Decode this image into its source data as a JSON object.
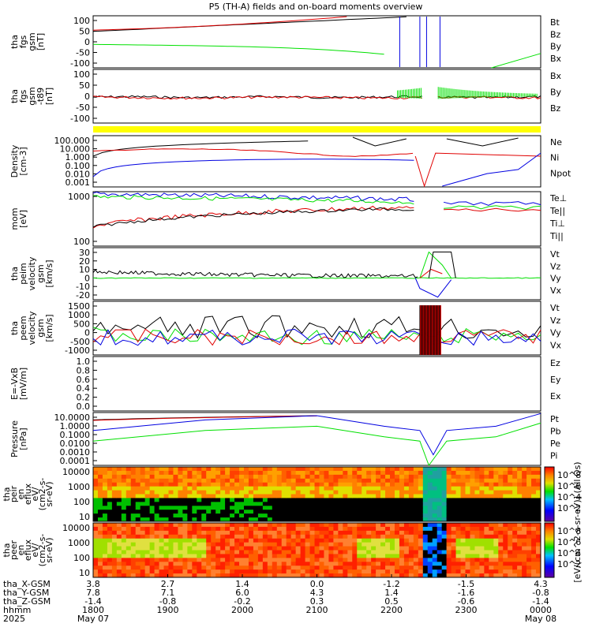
{
  "title": "P5 (TH-A) fields and on-board moments overview",
  "colors": {
    "black": "#000000",
    "red": "#e00000",
    "green": "#00e000",
    "blue": "#0000e0",
    "yellow": "#ffff00"
  },
  "panels": [
    {
      "ylabel": [
        "tha",
        "fgs",
        "gsm",
        "[nT]"
      ],
      "ticks": [
        "100",
        "50",
        "0",
        "-50",
        "-100"
      ],
      "legend": [
        {
          "t": "Bt",
          "c": "black"
        },
        {
          "t": "Bz",
          "c": "red"
        },
        {
          "t": "By",
          "c": "green"
        },
        {
          "t": "Bx",
          "c": "blue"
        }
      ]
    },
    {
      "ylabel": [
        "tha",
        "fgs",
        "gsm",
        "-t89",
        "[nT]"
      ],
      "ticks": [
        "100",
        "50",
        "0",
        "-50",
        "-100"
      ],
      "legend": [
        {
          "t": "Bx",
          "c": "green"
        },
        {
          "t": "By",
          "c": "black"
        },
        {
          "t": "Bz",
          "c": "red"
        }
      ]
    },
    {
      "ylabel": [
        "Density",
        "[cm-3]"
      ],
      "ticks": [
        "100.000",
        "10.000",
        "1.000",
        "0.100",
        "0.010",
        "0.001"
      ],
      "legend": [
        {
          "t": "Ne",
          "c": "red"
        },
        {
          "t": "Ni",
          "c": "black"
        },
        {
          "t": "Npot",
          "c": "blue"
        }
      ]
    },
    {
      "ylabel": [
        "mom",
        "[eV]"
      ],
      "ticks": [
        "1000",
        "100"
      ],
      "legend": [
        {
          "t": "Te⊥",
          "c": "red"
        },
        {
          "t": "Te||",
          "c": "black"
        },
        {
          "t": "Ti⊥",
          "c": "green"
        },
        {
          "t": "Ti||",
          "c": "green"
        }
      ]
    },
    {
      "ylabel": [
        "tha",
        "peim",
        "velocity",
        "gsm",
        "[km/s]"
      ],
      "ticks": [
        "30",
        "20",
        "10",
        "0",
        "-10",
        "-20"
      ],
      "legend": [
        {
          "t": "Vt",
          "c": "black"
        },
        {
          "t": "Vz",
          "c": "red"
        },
        {
          "t": "Vy",
          "c": "green"
        },
        {
          "t": "Vx",
          "c": "blue"
        }
      ]
    },
    {
      "ylabel": [
        "tha",
        "peem",
        "velocity",
        "gsm",
        "[km/s]"
      ],
      "ticks": [
        "1500",
        "1000",
        "500",
        "0",
        "-500",
        "-1000"
      ],
      "legend": [
        {
          "t": "Vt",
          "c": "black"
        },
        {
          "t": "Vz",
          "c": "red"
        },
        {
          "t": "Vy",
          "c": "green"
        },
        {
          "t": "Vx",
          "c": "blue"
        }
      ]
    },
    {
      "ylabel": [
        "E=-VxB",
        "[mV/m]"
      ],
      "ticks": [
        "1.0",
        "0.8",
        "0.6",
        "0.4",
        "0.2",
        "0.0"
      ],
      "legend": [
        {
          "t": "Ez",
          "c": "red"
        },
        {
          "t": "Ey",
          "c": "green"
        },
        {
          "t": "Ex",
          "c": "blue"
        }
      ]
    },
    {
      "ylabel": [
        "Pressure",
        "[nPa]"
      ],
      "ticks": [
        "10.0000",
        "1.0000",
        "0.1000",
        "0.0100",
        "0.0010",
        "0.0001"
      ],
      "legend": [
        {
          "t": "Pt",
          "c": "black"
        },
        {
          "t": "Pb",
          "c": "red"
        },
        {
          "t": "Pe",
          "c": "green"
        },
        {
          "t": "Pi",
          "c": "blue"
        }
      ]
    },
    {
      "ylabel": [
        "tha",
        "peir",
        "en",
        "eflux",
        "eV/",
        "(cm2-s-",
        "sr-eV)"
      ],
      "ticks": [
        "10000",
        "1000",
        "100",
        "10"
      ],
      "legend": []
    },
    {
      "ylabel": [
        "tha",
        "peer",
        "en",
        "eflux",
        "eV/",
        "(cm2-s-",
        "sr-eV)"
      ],
      "ticks": [
        "10000",
        "1000",
        "100",
        "10"
      ],
      "legend": []
    }
  ],
  "colorbar": {
    "label": "[eV/(cm^2-s-sr-eV)] (All Qs)",
    "ticks": [
      "10^8",
      "10^6",
      "10^4",
      "10^2"
    ]
  },
  "footer": {
    "row_labels": [
      "tha_X-GSM",
      "tha_Y-GSM",
      "tha_Z-GSM",
      "hhmm",
      "2025"
    ],
    "cols": [
      {
        "x": "3.8",
        "y": "7.8",
        "z": "-1.4",
        "t": "1800",
        "d": "May 07"
      },
      {
        "x": "2.7",
        "y": "7.1",
        "z": "-0.8",
        "t": "1900",
        "d": ""
      },
      {
        "x": "1.4",
        "y": "6.0",
        "z": "-0.2",
        "t": "2000",
        "d": ""
      },
      {
        "x": "0.0",
        "y": "4.3",
        "z": "0.3",
        "t": "2100",
        "d": ""
      },
      {
        "x": "-1.2",
        "y": "1.4",
        "z": "0.5",
        "t": "2200",
        "d": ""
      },
      {
        "x": "-1.5",
        "y": "-1.6",
        "z": "-0.6",
        "t": "2300",
        "d": ""
      },
      {
        "x": "4.3",
        "y": "-0.8",
        "z": "-1.4",
        "t": "0000",
        "d": "May 08"
      }
    ]
  },
  "chart_data": {
    "type": "line",
    "title": "P5 (TH-A) fields and on-board moments overview",
    "x_time_ticks": [
      "1800",
      "1900",
      "2000",
      "2100",
      "2200",
      "2300",
      "0000"
    ],
    "panels": [
      {
        "ylabel": "tha fgs gsm [nT]",
        "ylim": [
          -100,
          100
        ],
        "series": [
          {
            "name": "Bz",
            "x": [
              "1800",
              "1900",
              "2000",
              "2030"
            ],
            "values": [
              45,
              60,
              80,
              100
            ]
          },
          {
            "name": "By",
            "x": [
              "1800",
              "1900",
              "2000",
              "2100",
              "2130"
            ],
            "values": [
              -10,
              -15,
              -28,
              -60,
              -100
            ]
          },
          {
            "name": "By",
            "x": [
              "2330",
              "0000"
            ],
            "values": [
              -100,
              -50
            ]
          }
        ]
      },
      {
        "ylabel": "tha fgs gsm -t89 [nT]",
        "ylim": [
          -120,
          120
        ],
        "series": []
      },
      {
        "ylabel": "Density [cm-3]",
        "scale": "log",
        "ylim": [
          0.001,
          100
        ],
        "series": [
          {
            "name": "Ne",
            "x": [
              "1800",
              "1900",
              "2000",
              "2100",
              "2200",
              "2300",
              "0000"
            ],
            "values": [
              3,
              4,
              5,
              4,
              2,
              1.5,
              1
            ]
          },
          {
            "name": "Ni",
            "x": [
              "1800",
              "1900",
              "2000",
              "2100",
              "2130",
              "2200",
              "2300",
              "0000"
            ],
            "values": [
              1,
              2,
              5,
              10,
              3,
              50,
              3,
              100
            ]
          },
          {
            "name": "Npot",
            "x": [
              "1800",
              "1900",
              "2000",
              "2100",
              "2200",
              "2300",
              "0000"
            ],
            "values": [
              0.02,
              0.03,
              0.05,
              0.1,
              0.05,
              0.03,
              1
            ]
          }
        ]
      },
      {
        "ylabel": "mom [eV]",
        "scale": "log",
        "ylim": [
          20,
          5000
        ],
        "series": []
      },
      {
        "ylabel": "tha peim velocity gsm [km/s]",
        "ylim": [
          -25,
          35
        ],
        "series": []
      },
      {
        "ylabel": "tha peem velocity gsm [km/s]",
        "ylim": [
          -1000,
          1500
        ],
        "series": []
      },
      {
        "ylabel": "E=-VxB [mV/m]",
        "ylim": [
          0,
          1
        ],
        "series": []
      },
      {
        "ylabel": "Pressure [nPa]",
        "scale": "log",
        "ylim": [
          0.0001,
          10
        ],
        "series": []
      }
    ]
  }
}
